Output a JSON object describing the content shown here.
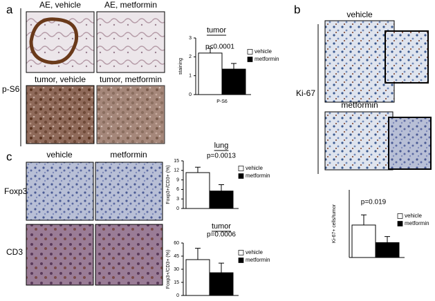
{
  "panels": {
    "a": {
      "label": "a",
      "row_label": "p-S6",
      "images": [
        "AE, vehicle",
        "AE, metformin",
        "tumor, vehicle",
        "tumor, metformin"
      ]
    },
    "b": {
      "label": "b",
      "row_label": "Ki-67",
      "images": [
        "vehicle",
        "metformin"
      ]
    },
    "c": {
      "label": "c",
      "columns": [
        "vehicle",
        "metformin"
      ],
      "rows": [
        "Foxp3",
        "CD3"
      ]
    }
  },
  "chart_data": [
    {
      "type": "bar",
      "title": "tumor",
      "annotation": "p<0.0001",
      "ylabel": "staining",
      "categories": [
        "P-S6"
      ],
      "series": [
        {
          "name": "vehicle",
          "color": "#ffffff",
          "values": [
            2.2
          ],
          "errors": [
            0.25
          ]
        },
        {
          "name": "metformin",
          "color": "#000000",
          "values": [
            1.35
          ],
          "errors": [
            0.3
          ]
        }
      ],
      "ylim": [
        0,
        3
      ],
      "yticks": [
        0,
        1,
        2,
        3
      ]
    },
    {
      "type": "bar",
      "title": "lung",
      "annotation": "p=0.0013",
      "ylabel": "Foxp3+/CD3+ (%)",
      "categories": [
        null
      ],
      "series": [
        {
          "name": "vehicle",
          "color": "#ffffff",
          "values": [
            11.3
          ],
          "errors": [
            1.7
          ]
        },
        {
          "name": "metformin",
          "color": "#000000",
          "values": [
            5.5
          ],
          "errors": [
            2
          ]
        }
      ],
      "ylim": [
        0,
        15
      ],
      "yticks": [
        0,
        3,
        6,
        9,
        12,
        15
      ]
    },
    {
      "type": "bar",
      "title": "tumor",
      "annotation": "p=0.0006",
      "ylabel": "Foxp3+/CD3+ (%)",
      "categories": [
        null
      ],
      "series": [
        {
          "name": "vehicle",
          "color": "#ffffff",
          "values": [
            41
          ],
          "errors": [
            13
          ]
        },
        {
          "name": "metformin",
          "color": "#000000",
          "values": [
            26
          ],
          "errors": [
            11
          ]
        }
      ],
      "ylim": [
        0,
        60
      ],
      "yticks": [
        0,
        15,
        30,
        45,
        60
      ]
    },
    {
      "type": "bar",
      "annotation": "p=0.019",
      "ylabel": "Ki-67+ cells/tumor",
      "categories": [
        null
      ],
      "series": [
        {
          "name": "vehicle",
          "color": "#ffffff",
          "values": [
            48
          ],
          "errors": [
            15
          ]
        },
        {
          "name": "metformin",
          "color": "#000000",
          "values": [
            22
          ],
          "errors": [
            9
          ]
        }
      ],
      "ylim": [
        0,
        100
      ]
    }
  ]
}
